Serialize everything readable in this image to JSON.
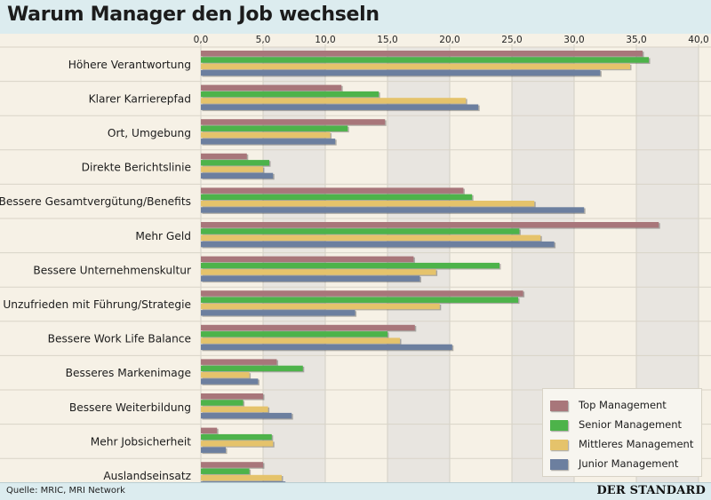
{
  "header": {
    "title": "Warum Manager den Job wechseln"
  },
  "footer": {
    "source": "Quelle: MRIC, MRI Network",
    "brand": "DER STANDARD"
  },
  "colors": {
    "Top Management": "#a8767a",
    "Senior Management": "#4db34a",
    "Mittleres Management": "#e5c36b",
    "Junior Management": "#6c7f9f",
    "background": "#f6f1e6",
    "band": "#e8e5e0",
    "header_bg": "#dcecef"
  },
  "chart_data": {
    "type": "bar",
    "orientation": "horizontal",
    "title": "Warum Manager den Job wechseln",
    "xlim": [
      0,
      40
    ],
    "xticks": [
      "0,0",
      "5,0",
      "10,0",
      "15,0",
      "20,0",
      "25,0",
      "30,0",
      "35,0",
      "40,0"
    ],
    "legend_position": "bottom-right",
    "categories": [
      "Höhere Verantwortung",
      "Klarer Karrierepfad",
      "Ort, Umgebung",
      "Direkte Berichtslinie",
      "Bessere Gesamtvergütung/Benefits",
      "Mehr Geld",
      "Bessere Unternehmenskultur",
      "Unzufrieden mit Führung/Strategie",
      "Bessere Work Life Balance",
      "Besseres Markenimage",
      "Bessere Weiterbildung",
      "Mehr Jobsicherheit",
      "Auslandseinsatz"
    ],
    "series": [
      {
        "name": "Top Management",
        "values": [
          35.5,
          11.3,
          14.8,
          3.7,
          21.1,
          36.8,
          17.1,
          25.9,
          17.2,
          6.1,
          5.0,
          1.3,
          5.0
        ]
      },
      {
        "name": "Senior Management",
        "values": [
          36.0,
          14.3,
          11.8,
          5.5,
          21.8,
          25.6,
          24.0,
          25.5,
          15.0,
          8.2,
          3.4,
          5.7,
          3.9
        ]
      },
      {
        "name": "Mittleres Management",
        "values": [
          34.5,
          21.3,
          10.4,
          5.0,
          26.8,
          27.3,
          18.9,
          19.2,
          16.0,
          3.9,
          5.4,
          5.8,
          6.5
        ]
      },
      {
        "name": "Junior Management",
        "values": [
          32.1,
          22.3,
          10.8,
          5.8,
          30.8,
          28.4,
          17.6,
          12.4,
          20.2,
          4.6,
          7.3,
          2.0,
          6.8
        ]
      }
    ]
  }
}
